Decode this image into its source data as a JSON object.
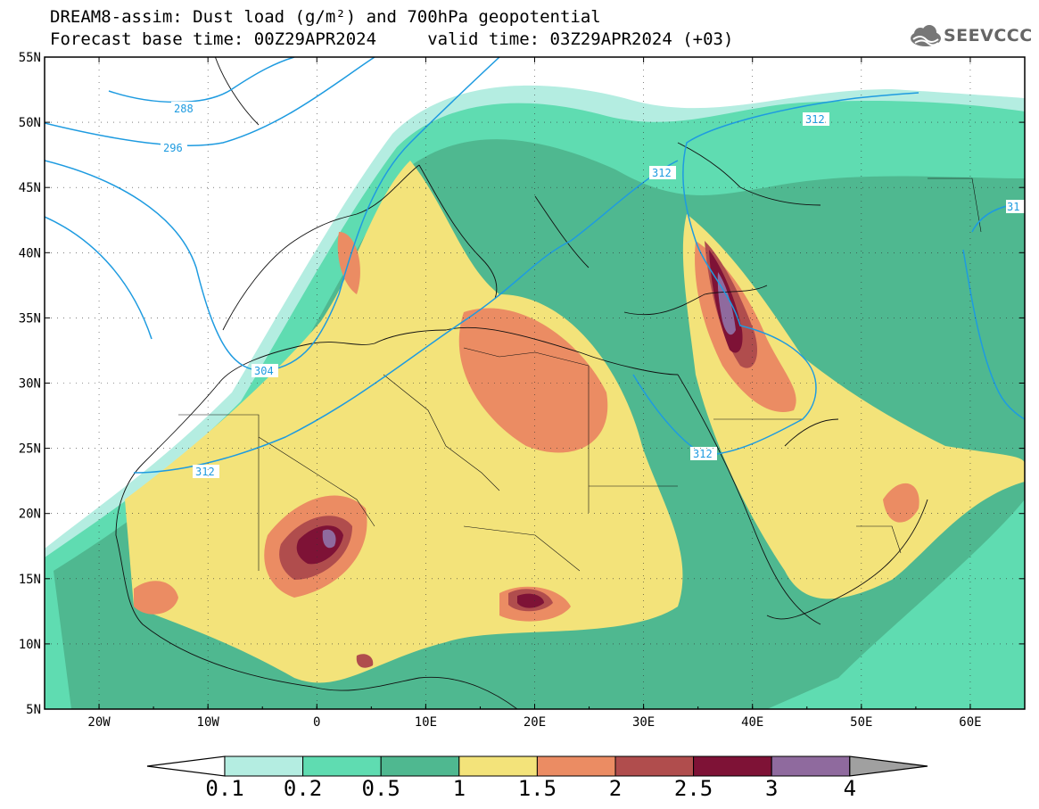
{
  "title": {
    "line1": "DREAM8-assim: Dust load (g/m²) and 700hPa geopotential",
    "line2": "Forecast base time: 00Z29APR2024     valid time: 03Z29APR2024 (+03)"
  },
  "logo": {
    "text": "SEEVCCC",
    "icon": "cloud-icon"
  },
  "map": {
    "lat_labels": [
      "55N",
      "50N",
      "45N",
      "40N",
      "35N",
      "30N",
      "25N",
      "20N",
      "15N",
      "10N",
      "5N"
    ],
    "lon_labels": [
      "20W",
      "10W",
      "0",
      "10E",
      "20E",
      "30E",
      "40E",
      "50E",
      "60E"
    ],
    "lat_range": [
      5,
      55
    ],
    "lon_range": [
      -25,
      65
    ],
    "contour_labels": [
      "288",
      "296",
      "304",
      "312",
      "312",
      "312",
      "312",
      "31"
    ]
  },
  "colorbar": {
    "levels": [
      "0.1",
      "0.2",
      "0.5",
      "1",
      "1.5",
      "2",
      "2.5",
      "3",
      "4"
    ],
    "colors": [
      "#b4ede1",
      "#5fdcb1",
      "#4fb890",
      "#f3e37a",
      "#eb8c63",
      "#b04d4d",
      "#7e1236",
      "#8f6a9e"
    ],
    "min_color": "#ffffff",
    "max_color": "#a0a0a0"
  }
}
